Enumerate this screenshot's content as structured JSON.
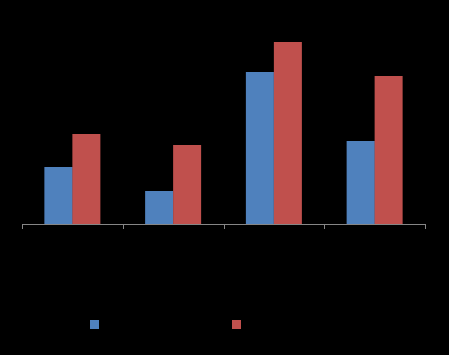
{
  "chart_data": {
    "type": "bar",
    "categories": [
      null,
      null,
      null,
      null
    ],
    "series": [
      {
        "color": "#4f81bd",
        "values": [
          57,
          33,
          152,
          83
        ]
      },
      {
        "color": "#c0504d",
        "values": [
          90,
          79,
          182,
          148
        ]
      }
    ],
    "ylim": [
      0,
      200
    ]
  }
}
